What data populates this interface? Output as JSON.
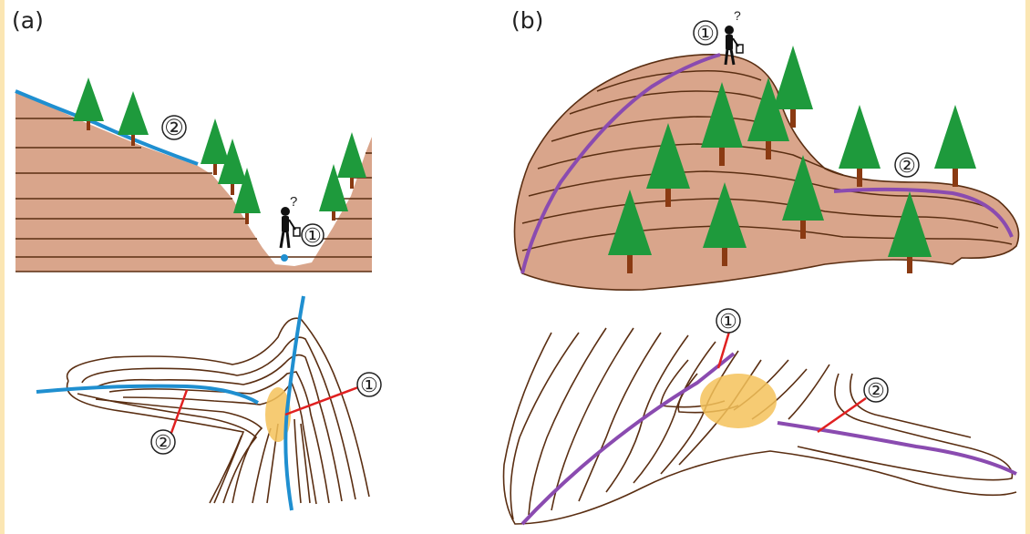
{
  "panels": [
    {
      "label": "(a)"
    },
    {
      "label": "(b)"
    }
  ],
  "markers": {
    "one": "①",
    "two": "②",
    "question": "?"
  },
  "colors": {
    "ground": "#D9A58B",
    "contour": "#5A2E12",
    "tree": "#1E9A3C",
    "trunk": "#8A3A12",
    "valley_line": "#1F8FD0",
    "ridge_line": "#8A4BB0",
    "pointer": "#E02020",
    "highlight": "#F5C25A",
    "border": "#FBE6B3"
  },
  "icons": [
    "tree-icon",
    "hiker-icon"
  ]
}
